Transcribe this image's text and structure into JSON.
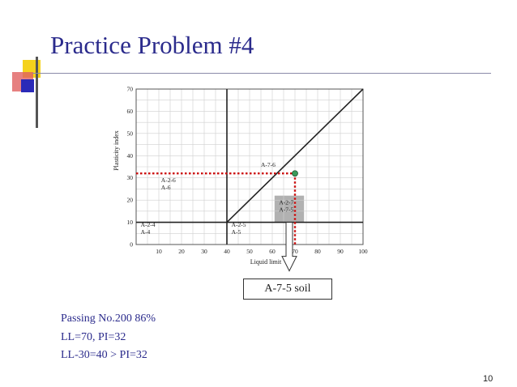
{
  "slide": {
    "title": "Practice Problem #4",
    "notes": [
      "Passing No.200  86%",
      "LL=70, PI=32",
      "LL-30=40 > PI=32"
    ],
    "result": "A-7-5 soil",
    "slide_number": "10"
  },
  "colors": {
    "title": "#2b2b8c",
    "text": "#2b2b8c",
    "marker_line": "#cc1111",
    "point": "#3a9a5a",
    "highlight": "#a8a8a8",
    "deco_yellow": "#f5d21c",
    "deco_blue": "#2a2ab8",
    "deco_red": "#e06060"
  },
  "chart_data": {
    "type": "scatter",
    "xlabel": "Liquid limit",
    "ylabel": "Plasticity index",
    "xlim": [
      0,
      100
    ],
    "ylim": [
      0,
      70
    ],
    "x_ticks": [
      10,
      20,
      30,
      40,
      50,
      60,
      70,
      80,
      90,
      100
    ],
    "y_ticks": [
      0,
      10,
      20,
      30,
      40,
      50,
      60,
      70
    ],
    "grid": true,
    "boundaries": [
      {
        "x1": 40,
        "y1": 0,
        "x2": 40,
        "y2": 70
      },
      {
        "x1": 0,
        "y1": 10,
        "x2": 100,
        "y2": 10
      },
      {
        "x1": 40,
        "y1": 10,
        "x2": 100,
        "y2": 70
      }
    ],
    "regions": [
      {
        "lines": [
          "A-2-4",
          "A-4"
        ],
        "x": 2,
        "y": 8
      },
      {
        "lines": [
          "A-2-6",
          "A-6"
        ],
        "x": 11,
        "y": 28
      },
      {
        "lines": [
          "A-2-5",
          "A-5"
        ],
        "x": 42,
        "y": 8
      },
      {
        "lines": [
          "A-7-6"
        ],
        "x": 55,
        "y": 35
      },
      {
        "lines": [
          "A-2-7",
          "A-7-5"
        ],
        "x": 63,
        "y": 18
      }
    ],
    "highlight_region": {
      "x1": 61,
      "x2": 74,
      "y1": 10,
      "y2": 22
    },
    "point": {
      "x": 70,
      "y": 32
    }
  }
}
